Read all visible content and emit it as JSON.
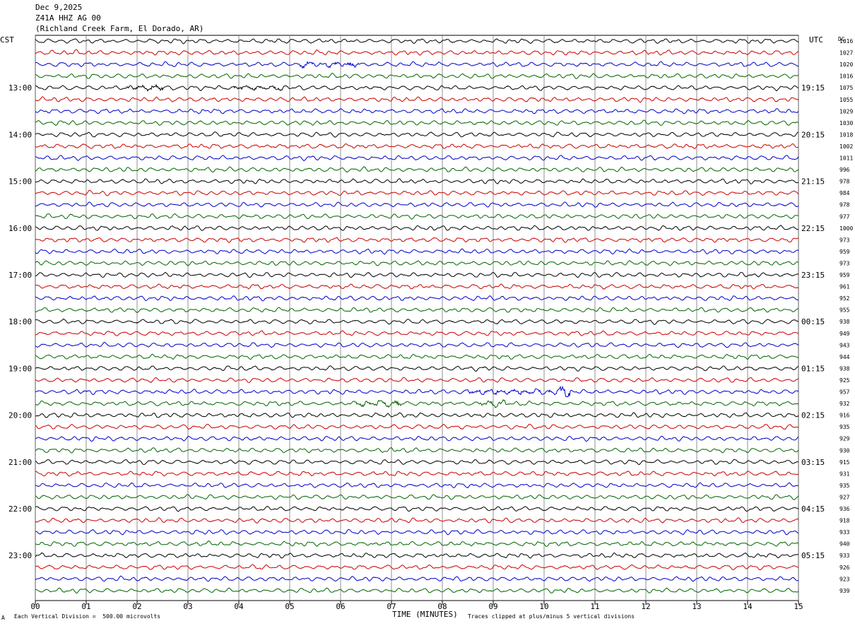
{
  "header": {
    "date": "Dec 9,2025",
    "station": "Z41A HHZ AG 00",
    "location": "(Richland Creek Farm, El Dorado, AR)"
  },
  "left_axis_label": "CST",
  "right_axis_label": "UTC",
  "right_column_label": "DC",
  "footer": {
    "xlabel": "TIME (MINUTES)",
    "scale_note": "Each Vertical Division =  500.00 microvolts",
    "clip_note": "Traces clipped at plus/minus 5 vertical divisions",
    "corner_mark": "A"
  },
  "chart_data": {
    "type": "line",
    "title": "Z41A HHZ AG 00",
    "xlabel": "TIME (MINUTES)",
    "xlim": [
      0,
      15
    ],
    "x_ticks": [
      "00",
      "01",
      "02",
      "03",
      "04",
      "05",
      "06",
      "07",
      "08",
      "09",
      "10",
      "11",
      "12",
      "13",
      "14",
      "15"
    ],
    "trace_colors": [
      "#000000",
      "#cc0000",
      "#0000cc",
      "#006600"
    ],
    "left_time_labels": [
      {
        "row": 4,
        "label": "13:00"
      },
      {
        "row": 8,
        "label": "14:00"
      },
      {
        "row": 12,
        "label": "15:00"
      },
      {
        "row": 16,
        "label": "16:00"
      },
      {
        "row": 20,
        "label": "17:00"
      },
      {
        "row": 24,
        "label": "18:00"
      },
      {
        "row": 28,
        "label": "19:00"
      },
      {
        "row": 32,
        "label": "20:00"
      },
      {
        "row": 36,
        "label": "21:00"
      },
      {
        "row": 40,
        "label": "22:00"
      },
      {
        "row": 44,
        "label": "23:00"
      }
    ],
    "right_time_labels": [
      {
        "row": 4,
        "label": "19:15"
      },
      {
        "row": 8,
        "label": "20:15"
      },
      {
        "row": 12,
        "label": "21:15"
      },
      {
        "row": 16,
        "label": "22:15"
      },
      {
        "row": 20,
        "label": "23:15"
      },
      {
        "row": 24,
        "label": "00:15"
      },
      {
        "row": 28,
        "label": "01:15"
      },
      {
        "row": 32,
        "label": "02:15"
      },
      {
        "row": 36,
        "label": "03:15"
      },
      {
        "row": 40,
        "label": "04:15"
      },
      {
        "row": 44,
        "label": "05:15"
      }
    ],
    "dc_offsets": [
      "1016",
      "1027",
      "1020",
      "1016",
      "1075",
      "1055",
      "1029",
      "1030",
      "1018",
      "1002",
      "1011",
      "996",
      "978",
      "984",
      "978",
      "977",
      "1000",
      "973",
      "959",
      "973",
      "959",
      "961",
      "952",
      "955",
      "938",
      "949",
      "943",
      "944",
      "938",
      "925",
      "957",
      "932",
      "916",
      "935",
      "929",
      "930",
      "915",
      "931",
      "935",
      "927",
      "936",
      "918",
      "933",
      "940",
      "933",
      "926",
      "923",
      "939"
    ],
    "events": [
      {
        "row": 2,
        "start_min": 5.2,
        "end_min": 6.4,
        "amplitude": 1.3
      },
      {
        "row": 4,
        "start_min": 1.8,
        "end_min": 2.5,
        "amplitude": 1.5
      },
      {
        "row": 4,
        "start_min": 3.9,
        "end_min": 4.9,
        "amplitude": 1.2
      },
      {
        "row": 30,
        "start_min": 8.5,
        "end_min": 10.5,
        "amplitude": 1.3
      },
      {
        "row": 30,
        "start_min": 10.3,
        "end_min": 10.5,
        "amplitude": 2.5
      },
      {
        "row": 31,
        "start_min": 6.3,
        "end_min": 7.2,
        "amplitude": 1.4
      },
      {
        "row": 31,
        "start_min": 8.7,
        "end_min": 9.3,
        "amplitude": 1.6
      }
    ]
  }
}
